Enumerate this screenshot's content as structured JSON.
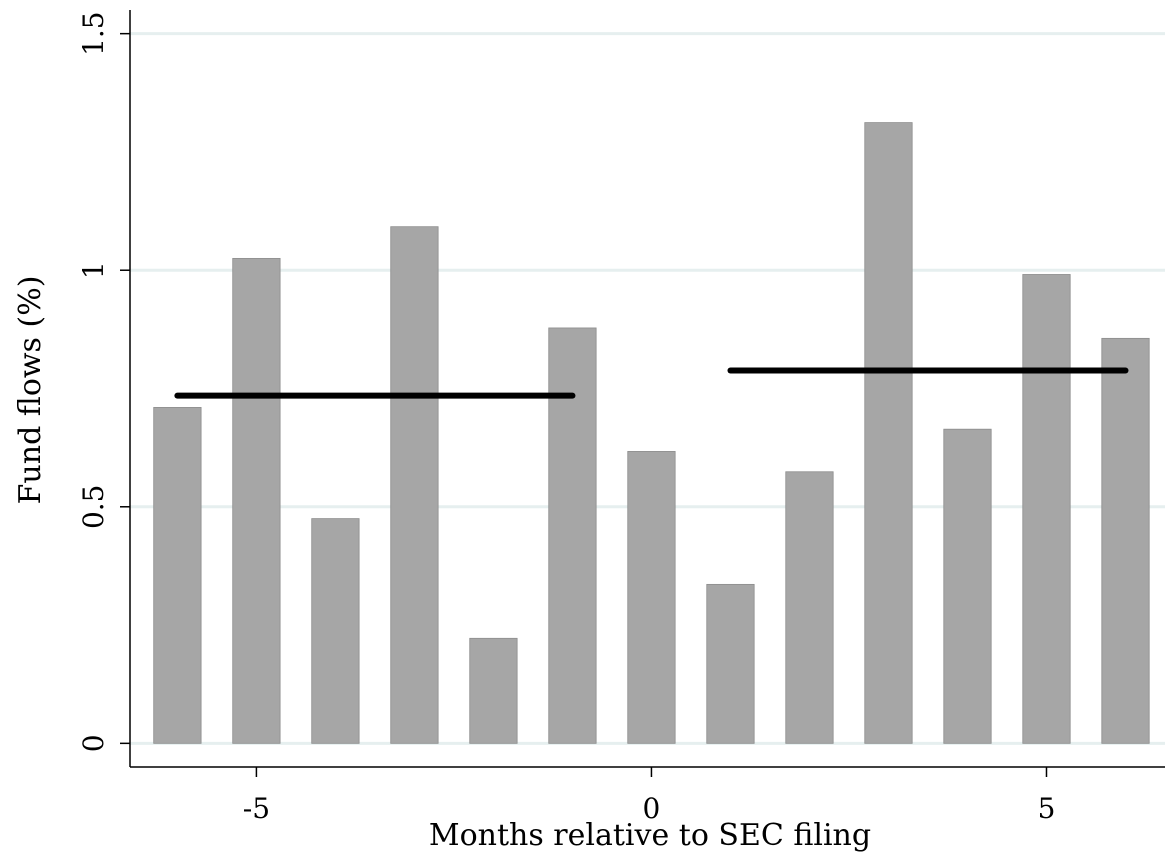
{
  "chart_data": {
    "type": "bar",
    "xlabel": "Months relative to SEC filing",
    "ylabel": "Fund flows (%)",
    "x": [
      -6,
      -5,
      -4,
      -3,
      -2,
      -1,
      0,
      1,
      2,
      3,
      4,
      5,
      6
    ],
    "values": [
      0.71,
      1.025,
      0.475,
      1.092,
      0.222,
      0.878,
      0.617,
      0.336,
      0.574,
      1.312,
      0.664,
      0.991,
      0.856
    ],
    "xlim": [
      -6.6,
      6.5
    ],
    "ylim": [
      -0.05,
      1.55
    ],
    "xticks": [
      -5,
      0,
      5
    ],
    "xtick_labels": [
      "-5",
      "0",
      "5"
    ],
    "yticks": [
      0,
      0.5,
      1,
      1.5
    ],
    "ytick_labels": [
      "0",
      "0.5",
      "1",
      "1.5"
    ],
    "grid": "horizontal",
    "bar_color": "#a6a6a6",
    "grid_color": "#e6efef",
    "mean_lines": [
      {
        "x_start": -6,
        "x_end": -1,
        "y": 0.735
      },
      {
        "x_start": 1,
        "x_end": 6,
        "y": 0.788
      }
    ]
  }
}
